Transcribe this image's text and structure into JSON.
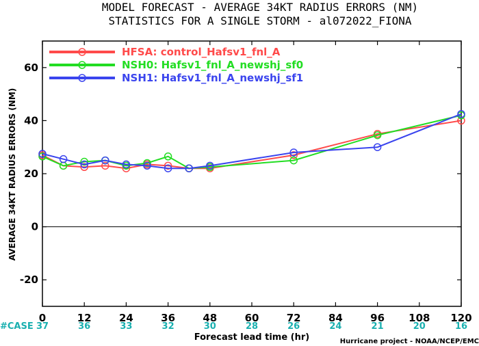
{
  "chart_data": {
    "type": "line",
    "title_line1": "MODEL FORECAST - AVERAGE 34KT RADIUS ERRORS (NM)",
    "title_line2": "STATISTICS FOR A SINGLE STORM - al072022_FIONA",
    "ylabel": "AVERAGE 34KT RADIUS ERRORS (NM)",
    "xlabel": "Forecast lead time (hr)",
    "credit": "Hurricane project - NOAA/NCEP/EMC",
    "xlim": [
      0,
      120
    ],
    "ylim": [
      -30,
      70
    ],
    "xticks": [
      0,
      12,
      24,
      36,
      48,
      60,
      72,
      84,
      96,
      108,
      120
    ],
    "yticks": [
      -20,
      0,
      20,
      40,
      60
    ],
    "case_label": "#CASE",
    "case_counts": [
      "37",
      "36",
      "33",
      "32",
      "30",
      "28",
      "26",
      "24",
      "21",
      "20",
      "16"
    ],
    "colors": {
      "case": "#1ab0b0",
      "zero_line": "#000000"
    },
    "series": [
      {
        "name": "HFSA: control_Hafsv1_fnl_A",
        "color": "#ff4a4a",
        "x": [
          0,
          6,
          12,
          18,
          24,
          30,
          36,
          42,
          48,
          72,
          96,
          120
        ],
        "y": [
          27,
          23,
          22.5,
          23,
          22,
          23.5,
          23,
          22,
          22,
          27,
          35,
          40
        ]
      },
      {
        "name": "NSH0: Hafsv1_fnl_A_newshj_sf0",
        "color": "#22dd22",
        "x": [
          0,
          6,
          12,
          18,
          24,
          30,
          36,
          42,
          48,
          72,
          96,
          120
        ],
        "y": [
          26.5,
          23,
          24.5,
          25,
          23,
          24,
          26.5,
          22,
          22.5,
          25,
          34.5,
          42
        ]
      },
      {
        "name": "NSH1: Hafsv1_fnl_A_newshj_sf1",
        "color": "#3a44ee",
        "x": [
          0,
          6,
          12,
          18,
          24,
          30,
          36,
          42,
          48,
          72,
          96,
          120
        ],
        "y": [
          27.5,
          25.5,
          23.5,
          25,
          23.5,
          23,
          22,
          22,
          23,
          28,
          30,
          42.5
        ]
      }
    ]
  }
}
